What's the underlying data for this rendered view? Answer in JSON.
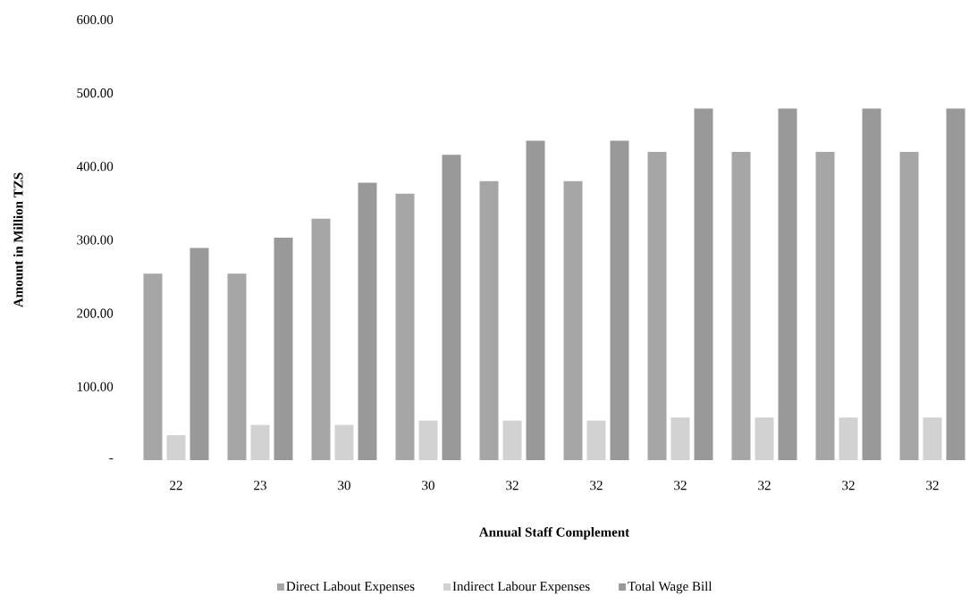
{
  "chart_data": {
    "type": "bar",
    "xlabel": "Annual Staff Complement",
    "ylabel": "Amount in Million TZS",
    "categories": [
      "22",
      "23",
      "30",
      "30",
      "32",
      "32",
      "32",
      "32",
      "32",
      "32"
    ],
    "series": [
      {
        "name": "Direct Labout Expenses",
        "color": "#a6a6a6",
        "values": [
          254,
          254,
          329,
          363,
          380,
          380,
          420,
          420,
          420,
          420
        ]
      },
      {
        "name": "Indirect Labour Expenses",
        "color": "#d2d2d2",
        "values": [
          34,
          48,
          48,
          54,
          54,
          54,
          58,
          58,
          58,
          58
        ]
      },
      {
        "name": "Total Wage Bill",
        "color": "#999999",
        "values": [
          289,
          303,
          378,
          416,
          435,
          435,
          479,
          479,
          479,
          479
        ]
      }
    ],
    "ylim": [
      0,
      600
    ],
    "yticks": [
      {
        "value": 0,
        "label": "-"
      },
      {
        "value": 100,
        "label": "100.00"
      },
      {
        "value": 200,
        "label": "200.00"
      },
      {
        "value": 300,
        "label": "300.00"
      },
      {
        "value": 400,
        "label": "400.00"
      },
      {
        "value": 500,
        "label": "500.00"
      },
      {
        "value": 600,
        "label": "600.00"
      }
    ],
    "legend": "bottom"
  }
}
